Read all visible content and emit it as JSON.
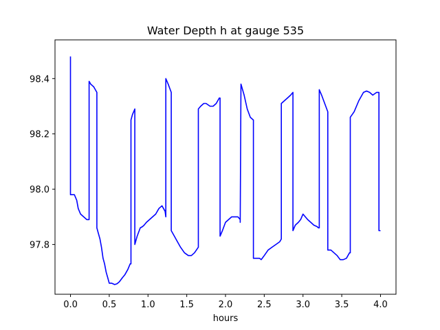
{
  "chart_data": {
    "type": "line",
    "title": "Water Depth h at gauge 535",
    "xlabel": "hours",
    "ylabel": "",
    "xlim": [
      -0.2,
      4.2
    ],
    "ylim": [
      97.62,
      98.54
    ],
    "xticks": [
      0.0,
      0.5,
      1.0,
      1.5,
      2.0,
      2.5,
      3.0,
      3.5,
      4.0
    ],
    "xtick_labels": [
      "0.0",
      "0.5",
      "1.0",
      "1.5",
      "2.0",
      "2.5",
      "3.0",
      "3.5",
      "4.0"
    ],
    "yticks": [
      97.8,
      98.0,
      98.2,
      98.4
    ],
    "ytick_labels": [
      "97.8",
      "98.0",
      "98.2",
      "98.4"
    ],
    "grid": false,
    "series": [
      {
        "color": "#0000ff",
        "x": [
          0.0,
          0.0,
          0.01,
          0.05,
          0.08,
          0.1,
          0.13,
          0.17,
          0.21,
          0.24,
          0.24,
          0.26,
          0.3,
          0.34,
          0.34,
          0.36,
          0.38,
          0.4,
          0.42,
          0.44,
          0.46,
          0.48,
          0.5,
          0.53,
          0.57,
          0.6,
          0.63,
          0.67,
          0.7,
          0.74,
          0.77,
          0.78,
          0.78,
          0.8,
          0.83,
          0.83,
          0.86,
          0.9,
          0.93,
          0.95,
          0.98,
          1.02,
          1.06,
          1.1,
          1.14,
          1.18,
          1.22,
          1.23,
          1.23,
          1.26,
          1.3,
          1.3,
          1.34,
          1.38,
          1.42,
          1.47,
          1.52,
          1.56,
          1.6,
          1.65,
          1.65,
          1.68,
          1.72,
          1.75,
          1.8,
          1.84,
          1.88,
          1.92,
          1.93,
          1.93,
          1.96,
          2.0,
          2.04,
          2.08,
          2.12,
          2.16,
          2.19,
          2.19,
          2.2,
          2.24,
          2.28,
          2.32,
          2.36,
          2.36,
          2.4,
          2.44,
          2.46,
          2.5,
          2.55,
          2.6,
          2.65,
          2.7,
          2.72,
          2.72,
          2.76,
          2.8,
          2.84,
          2.87,
          2.87,
          2.9,
          2.94,
          2.97,
          3.0,
          3.03,
          3.06,
          3.1,
          3.14,
          3.18,
          3.2,
          3.21,
          3.21,
          3.24,
          3.28,
          3.32,
          3.32,
          3.36,
          3.4,
          3.44,
          3.48,
          3.52,
          3.56,
          3.6,
          3.61,
          3.61,
          3.66,
          3.72,
          3.78,
          3.82,
          3.86,
          3.9,
          3.95,
          3.98,
          3.98,
          4.0
        ],
        "y": [
          98.48,
          97.98,
          97.98,
          97.98,
          97.96,
          97.93,
          97.91,
          97.9,
          97.89,
          97.89,
          98.39,
          98.38,
          98.37,
          98.35,
          97.86,
          97.84,
          97.82,
          97.79,
          97.75,
          97.73,
          97.7,
          97.68,
          97.66,
          97.66,
          97.655,
          97.658,
          97.665,
          97.68,
          97.69,
          97.71,
          97.73,
          97.73,
          98.25,
          98.27,
          98.29,
          97.8,
          97.83,
          97.86,
          97.865,
          97.87,
          97.88,
          97.89,
          97.9,
          97.91,
          97.93,
          97.94,
          97.92,
          97.9,
          98.4,
          98.38,
          98.35,
          97.85,
          97.83,
          97.81,
          97.79,
          97.77,
          97.76,
          97.76,
          97.77,
          97.79,
          98.29,
          98.3,
          98.31,
          98.31,
          98.3,
          98.3,
          98.31,
          98.33,
          98.33,
          97.83,
          97.85,
          97.88,
          97.89,
          97.9,
          97.9,
          97.9,
          97.89,
          97.88,
          98.38,
          98.34,
          98.29,
          98.26,
          98.25,
          97.75,
          97.75,
          97.75,
          97.745,
          97.76,
          97.78,
          97.79,
          97.8,
          97.81,
          97.82,
          98.31,
          98.32,
          98.33,
          98.34,
          98.35,
          97.85,
          97.87,
          97.88,
          97.89,
          97.91,
          97.9,
          97.89,
          97.88,
          97.87,
          97.865,
          97.86,
          97.86,
          98.36,
          98.34,
          98.31,
          98.28,
          97.78,
          97.78,
          97.77,
          97.76,
          97.745,
          97.745,
          97.75,
          97.77,
          97.77,
          98.26,
          98.28,
          98.32,
          98.35,
          98.355,
          98.35,
          98.34,
          98.35,
          98.35,
          97.85,
          97.85
        ]
      }
    ]
  }
}
